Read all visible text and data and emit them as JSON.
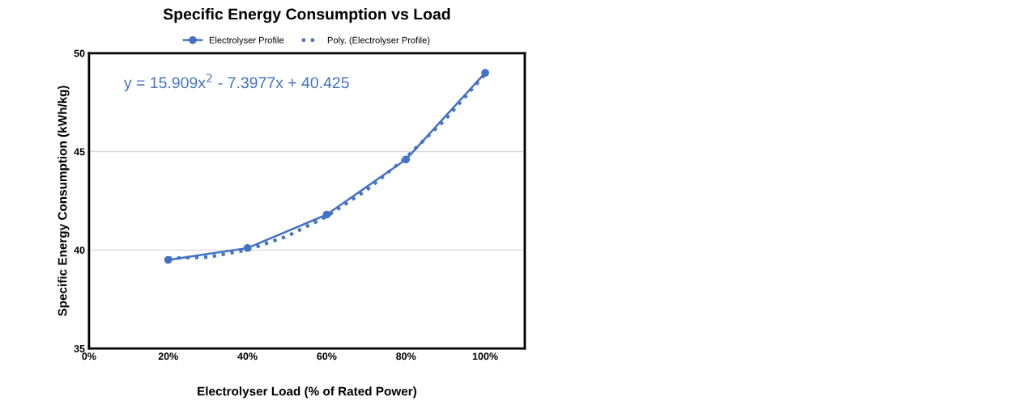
{
  "chart_data": {
    "type": "line",
    "title": "Specific Energy Consumption vs Load",
    "xlabel": "Electrolyser Load (% of Rated Power)",
    "ylabel": "Specific Energy Consumption (kWh/kg)",
    "x": [
      0.2,
      0.4,
      0.6,
      0.8,
      1.0
    ],
    "series": [
      {
        "name": "Electrolyser Profile",
        "color": "#4472c4",
        "values": [
          39.5,
          40.1,
          41.8,
          44.6,
          49.0
        ],
        "marker": "circle",
        "line_style": "solid"
      },
      {
        "name": "Poly. (Electrolyser Profile)",
        "color": "#4472c4",
        "x": [
          0.2,
          0.3,
          0.4,
          0.5,
          0.6,
          0.7,
          0.8,
          0.9,
          1.0
        ],
        "values": [
          39.58,
          39.64,
          40.01,
          40.7,
          41.71,
          43.04,
          44.69,
          46.65,
          48.94
        ],
        "marker": "none",
        "line_style": "dotted"
      }
    ],
    "xlim": [
      0,
      1.1
    ],
    "xticks": [
      {
        "value": 0,
        "label": "0%"
      },
      {
        "value": 0.2,
        "label": "20%"
      },
      {
        "value": 0.4,
        "label": "40%"
      },
      {
        "value": 0.6,
        "label": "60%"
      },
      {
        "value": 0.8,
        "label": "80%"
      },
      {
        "value": 1.0,
        "label": "100%"
      }
    ],
    "ylim": [
      35,
      50
    ],
    "yticks": [
      35,
      40,
      45,
      50
    ],
    "grid": "y",
    "legend": "top",
    "annotations": [
      "y = 15.909x$^{2}$ - 7.3977x + 40.425"
    ]
  }
}
